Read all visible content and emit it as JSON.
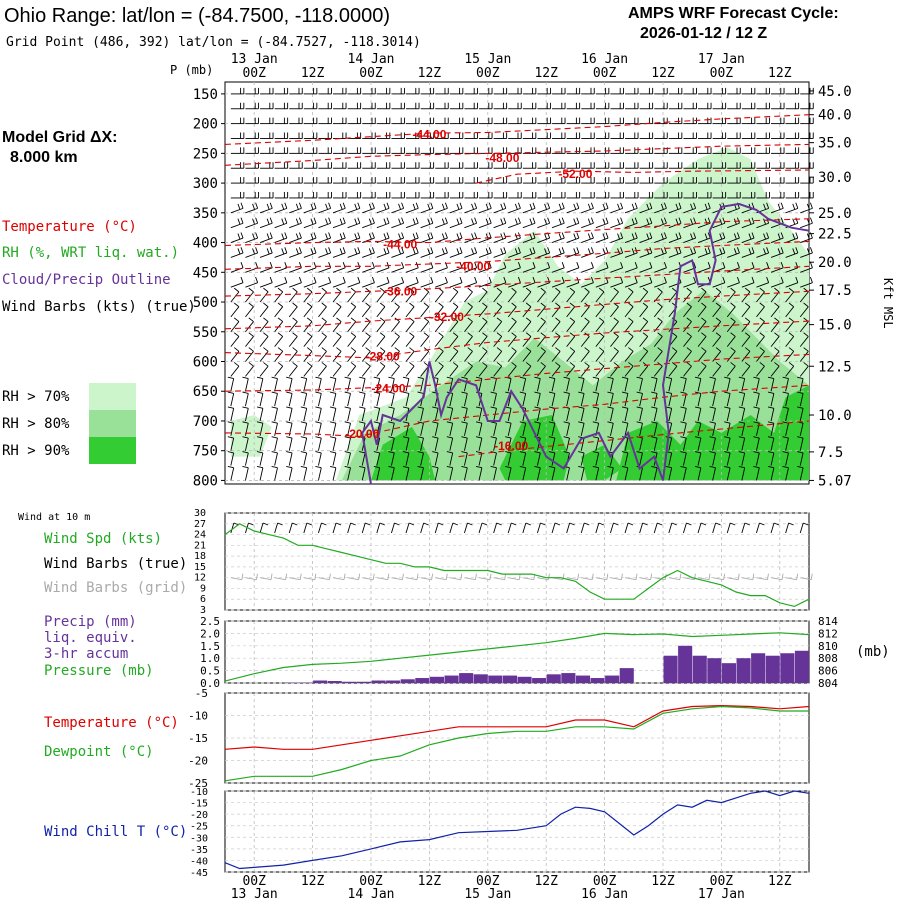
{
  "header": {
    "title": "Ohio Range:  lat/lon = (-84.7500, -118.0000)",
    "subtitle": "Grid Point (486, 392) lat/lon = (-84.7527, -118.3014)",
    "cycle_line1": "AMPS WRF Forecast Cycle:",
    "cycle_line2": "2026-01-12 / 12  Z"
  },
  "left_panel": {
    "model_grid_label": "Model Grid ΔX:",
    "model_grid_value": "8.000 km",
    "temperature_label": "Temperature (°C)",
    "rh_label": "RH (%, WRT liq. wat.)",
    "cloud_label": "Cloud/Precip Outline",
    "wind_label": "Wind Barbs (kts) (true)",
    "rh70": "RH > 70%",
    "rh80": "RH > 80%",
    "rh90": "RH > 90%"
  },
  "colors": {
    "temperature": "#dd0000",
    "rh": "#22aa22",
    "cloud": "#663399",
    "wind_grid": "#aaaaaa",
    "rh70": "#ccf5cc",
    "rh80": "#99e099",
    "rh90": "#33cc33",
    "precip_bar": "#663399",
    "wind_chill": "#1122aa"
  },
  "time_axis": {
    "top_days": [
      "13 Jan",
      "14 Jan",
      "15 Jan",
      "16 Jan",
      "17 Jan"
    ],
    "bottom_days": [
      "13 Jan",
      "14 Jan",
      "15 Jan",
      "16 Jan",
      "17 Jan"
    ],
    "hour_ticks": [
      "00Z",
      "12Z",
      "00Z",
      "12Z",
      "00Z",
      "12Z",
      "00Z",
      "12Z",
      "00Z",
      "12Z"
    ]
  },
  "chart_data": [
    {
      "type": "contour",
      "name": "cross-section",
      "pressure_axis_label": "P (mb)",
      "pressure_ticks": [
        150,
        200,
        250,
        300,
        350,
        400,
        450,
        500,
        550,
        600,
        650,
        700,
        750,
        800
      ],
      "height_axis_label": "Kft MSL",
      "height_ticks": [
        "45.0",
        "40.0",
        "35.0",
        "30.0",
        "25.0",
        "22.5",
        "20.0",
        "17.5",
        "15.0",
        "12.5",
        "10.0",
        "7.5",
        "5.07"
      ],
      "height_ticks_p": [
        145,
        185,
        232,
        290,
        350,
        385,
        433,
        480,
        538,
        608,
        690,
        752,
        800
      ],
      "temperature_labels": [
        "-44.00",
        "-48.00",
        "-52.00",
        "-44.00",
        "-40.00",
        "-36.00",
        "-32.00",
        "-28.00",
        "-24.00",
        "-20.00",
        "-16.00"
      ],
      "temperature_label_positions": [
        [
          3,
          218
        ],
        [
          4.25,
          258
        ],
        [
          5.5,
          285
        ],
        [
          2.5,
          403
        ],
        [
          3.75,
          440
        ],
        [
          2.5,
          482
        ],
        [
          3.3,
          525
        ],
        [
          2.2,
          592
        ],
        [
          2.3,
          645
        ],
        [
          1.85,
          722
        ],
        [
          4.4,
          742
        ]
      ]
    },
    {
      "type": "line",
      "name": "wind-10m",
      "title": "Wind at 10 m",
      "label_speed": "Wind Spd (kts)",
      "label_barbs_true": "Wind Barbs (true)",
      "label_barbs_grid": "Wind Barbs (grid)",
      "y_ticks": [
        "30",
        "27",
        "24",
        "21",
        "18",
        "15",
        "12",
        "9",
        "6",
        "3"
      ],
      "ylim": [
        3,
        30
      ],
      "x": [
        -0.5,
        -0.25,
        0,
        0.25,
        0.5,
        0.75,
        1,
        1.25,
        1.5,
        1.75,
        2,
        2.25,
        2.5,
        2.75,
        3,
        3.25,
        3.5,
        3.75,
        4,
        4.25,
        4.5,
        4.75,
        5,
        5.25,
        5.5,
        5.75,
        6,
        6.25,
        6.5,
        6.75,
        7,
        7.25,
        7.5,
        7.75,
        8,
        8.25,
        8.5,
        8.75,
        9,
        9.25,
        9.5
      ],
      "values": [
        24,
        27,
        25,
        24,
        23,
        21,
        21,
        20,
        19,
        18,
        17,
        16,
        16,
        15,
        15,
        14,
        14,
        14,
        14,
        13,
        13,
        13,
        12,
        12,
        11,
        8,
        6,
        6,
        6,
        9,
        12,
        14,
        12,
        11,
        10,
        8,
        7,
        7,
        5,
        4,
        6
      ]
    },
    {
      "type": "bar+line",
      "name": "precip-pressure",
      "label_precip": "Precip (mm)",
      "label_liq": "liq. equiv.",
      "label_accum": "3-hr accum",
      "label_pressure": "Pressure (mb)",
      "units_right": "(mb)",
      "left_ticks": [
        "2.5",
        "2.0",
        "1.5",
        "1.0",
        "0.5",
        "0.0"
      ],
      "right_ticks": [
        "814",
        "812",
        "810",
        "808",
        "806",
        "804"
      ],
      "precip_ylim": [
        0,
        2.5
      ],
      "pressure_ylim": [
        804,
        814
      ],
      "precip_x": [
        0.75,
        1,
        1.25,
        1.5,
        1.75,
        2,
        2.25,
        2.5,
        2.75,
        3,
        3.25,
        3.5,
        3.75,
        4,
        4.25,
        4.5,
        4.75,
        5,
        5.25,
        5.5,
        5.75,
        6,
        6.25,
        6.5,
        6.75,
        7,
        7.25,
        7.5,
        7.75,
        8,
        8.25,
        8.5,
        8.75,
        9,
        9.25,
        9.5
      ],
      "precip": [
        0.02,
        0.02,
        0.1,
        0.08,
        0.05,
        0.05,
        0.1,
        0.1,
        0.15,
        0.2,
        0.25,
        0.3,
        0.4,
        0.35,
        0.3,
        0.3,
        0.25,
        0.2,
        0.35,
        0.4,
        0.3,
        0.2,
        0.3,
        0.6,
        0.0,
        0.0,
        1.1,
        1.5,
        1.1,
        1.0,
        0.8,
        1.0,
        1.2,
        1.1,
        1.2,
        1.3
      ],
      "pressure_x": [
        -0.5,
        0,
        0.5,
        1,
        1.5,
        2,
        2.5,
        3,
        3.5,
        4,
        4.5,
        5,
        5.5,
        6,
        6.5,
        7,
        7.5,
        8,
        8.5,
        9,
        9.5
      ],
      "pressure": [
        804.3,
        805.5,
        806.5,
        807.0,
        807.2,
        807.5,
        808.0,
        808.5,
        809.0,
        809.5,
        810.0,
        810.5,
        811.2,
        812.0,
        811.8,
        811.9,
        811.5,
        811.7,
        811.9,
        812.1,
        811.8
      ]
    },
    {
      "type": "line",
      "name": "temperature-dewpoint",
      "label_temp": "Temperature (°C)",
      "label_dew": "Dewpoint (°C)",
      "y_ticks": [
        "-5",
        "-10",
        "-15",
        "-20",
        "-25"
      ],
      "ylim": [
        -25,
        -5
      ],
      "x": [
        -0.5,
        0,
        0.5,
        1,
        1.5,
        2,
        2.5,
        3,
        3.5,
        4,
        4.5,
        5,
        5.5,
        6,
        6.5,
        7,
        7.5,
        8,
        8.5,
        9,
        9.5
      ],
      "temperature": [
        -17.5,
        -17.0,
        -17.5,
        -17.5,
        -16.5,
        -15.5,
        -14.5,
        -13.5,
        -12.5,
        -12.5,
        -12.5,
        -12.5,
        -11.0,
        -11.0,
        -12.5,
        -9.0,
        -8.0,
        -7.8,
        -8.0,
        -8.5,
        -8.0
      ],
      "dewpoint": [
        -24.5,
        -23.5,
        -23.5,
        -23.5,
        -22.0,
        -20.0,
        -19.0,
        -16.5,
        -15.0,
        -14.0,
        -13.5,
        -13.5,
        -12.5,
        -12.5,
        -13.0,
        -9.5,
        -8.5,
        -8.0,
        -8.3,
        -9.0,
        -9.0
      ]
    },
    {
      "type": "line",
      "name": "wind-chill",
      "label": "Wind Chill T (°C)",
      "y_ticks": [
        "-10",
        "-15",
        "-20",
        "-25",
        "-30",
        "-35",
        "-40",
        "-45"
      ],
      "ylim": [
        -45,
        -10
      ],
      "x": [
        -0.5,
        -0.25,
        0,
        0.5,
        1,
        1.5,
        2,
        2.5,
        3,
        3.5,
        4,
        4.5,
        5,
        5.25,
        5.5,
        5.75,
        6,
        6.25,
        6.5,
        6.75,
        7,
        7.25,
        7.5,
        7.75,
        8,
        8.25,
        8.5,
        8.75,
        9,
        9.25,
        9.5
      ],
      "values": [
        -41,
        -43.5,
        -43,
        -42,
        -40,
        -38,
        -35,
        -32,
        -31,
        -28,
        -27.5,
        -27,
        -25,
        -20,
        -17,
        -17.5,
        -19,
        -24,
        -29,
        -25,
        -20,
        -16,
        -17,
        -14,
        -15,
        -13,
        -11,
        -10,
        -12,
        -10,
        -11
      ]
    }
  ]
}
